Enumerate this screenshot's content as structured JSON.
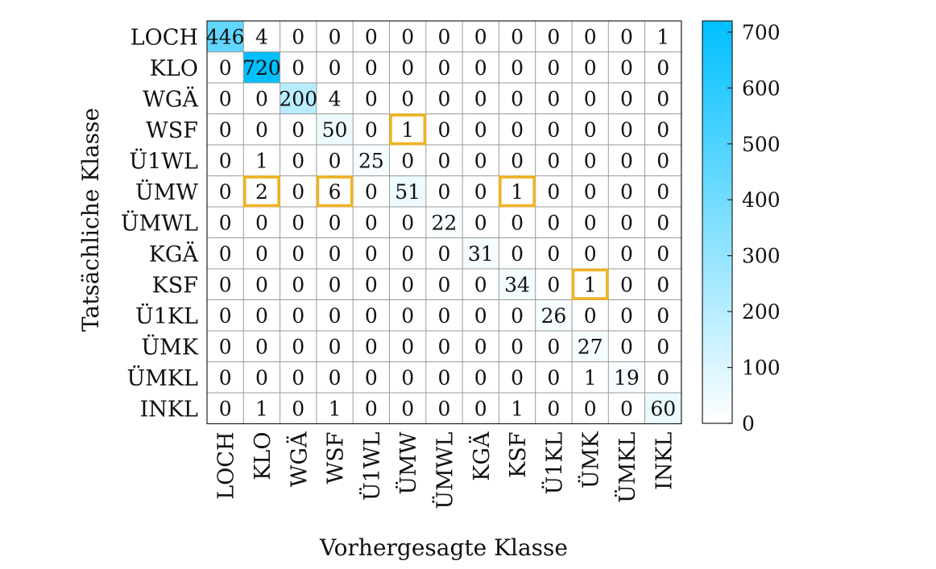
{
  "chart_data": {
    "type": "heatmap",
    "xlabel": "Vorhergesagte Klasse",
    "ylabel": "Tatsächliche Klasse",
    "row_labels": [
      "LOCH",
      "KLO",
      "WGÄ",
      "WSF",
      "Ü1WL",
      "ÜMW",
      "ÜMWL",
      "KGÄ",
      "KSF",
      "Ü1KL",
      "ÜMK",
      "ÜMKL",
      "INKL"
    ],
    "col_labels": [
      "LOCH",
      "KLO",
      "WGÄ",
      "WSF",
      "Ü1WL",
      "ÜMW",
      "ÜMWL",
      "KGÄ",
      "KSF",
      "Ü1KL",
      "ÜMK",
      "ÜMKL",
      "INKL"
    ],
    "values": [
      [
        446,
        4,
        0,
        0,
        0,
        0,
        0,
        0,
        0,
        0,
        0,
        0,
        1
      ],
      [
        0,
        720,
        0,
        0,
        0,
        0,
        0,
        0,
        0,
        0,
        0,
        0,
        0
      ],
      [
        0,
        0,
        200,
        4,
        0,
        0,
        0,
        0,
        0,
        0,
        0,
        0,
        0
      ],
      [
        0,
        0,
        0,
        50,
        0,
        1,
        0,
        0,
        0,
        0,
        0,
        0,
        0
      ],
      [
        0,
        1,
        0,
        0,
        25,
        0,
        0,
        0,
        0,
        0,
        0,
        0,
        0
      ],
      [
        0,
        2,
        0,
        6,
        0,
        51,
        0,
        0,
        1,
        0,
        0,
        0,
        0
      ],
      [
        0,
        0,
        0,
        0,
        0,
        0,
        22,
        0,
        0,
        0,
        0,
        0,
        0
      ],
      [
        0,
        0,
        0,
        0,
        0,
        0,
        0,
        31,
        0,
        0,
        0,
        0,
        0
      ],
      [
        0,
        0,
        0,
        0,
        0,
        0,
        0,
        0,
        34,
        0,
        1,
        0,
        0
      ],
      [
        0,
        0,
        0,
        0,
        0,
        0,
        0,
        0,
        0,
        26,
        0,
        0,
        0
      ],
      [
        0,
        0,
        0,
        0,
        0,
        0,
        0,
        0,
        0,
        0,
        27,
        0,
        0
      ],
      [
        0,
        0,
        0,
        0,
        0,
        0,
        0,
        0,
        0,
        0,
        1,
        19,
        0
      ],
      [
        0,
        1,
        0,
        1,
        0,
        0,
        0,
        0,
        1,
        0,
        0,
        0,
        60
      ]
    ],
    "highlighted_cells": [
      [
        3,
        5
      ],
      [
        5,
        1
      ],
      [
        5,
        3
      ],
      [
        5,
        8
      ],
      [
        8,
        10
      ]
    ],
    "colorbar": {
      "min": 0,
      "max": 720,
      "ticks": [
        0,
        100,
        200,
        300,
        400,
        500,
        600,
        700
      ],
      "color_low": "#ffffff",
      "color_high": "#00bfff"
    },
    "highlight_color": "#f0b323",
    "grid": true
  }
}
